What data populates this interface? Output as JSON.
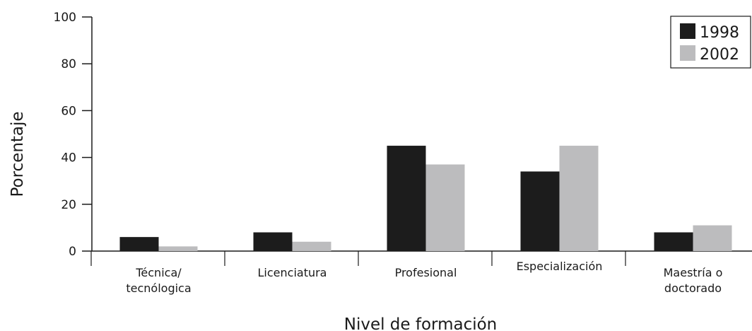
{
  "chart_data": {
    "type": "bar",
    "xlabel": "Nivel de formación",
    "ylabel": "Porcentaje",
    "ylim": [
      0,
      100
    ],
    "yticks": [
      "0",
      "20",
      "40",
      "60",
      "80",
      "100"
    ],
    "categories": [
      [
        "Técnica/",
        "tecnólogica"
      ],
      [
        "Licenciatura"
      ],
      [
        "Profesional"
      ],
      [
        "Especialización"
      ],
      [
        "Maestría o",
        "doctorado"
      ]
    ],
    "series": [
      {
        "name": "1998",
        "color": "#1c1c1c",
        "values": [
          6,
          8,
          45,
          34,
          8
        ]
      },
      {
        "name": "2002",
        "color": "#bcbcbe",
        "values": [
          2,
          4,
          37,
          45,
          11
        ]
      }
    ],
    "grid": false,
    "legend": "top-right"
  }
}
